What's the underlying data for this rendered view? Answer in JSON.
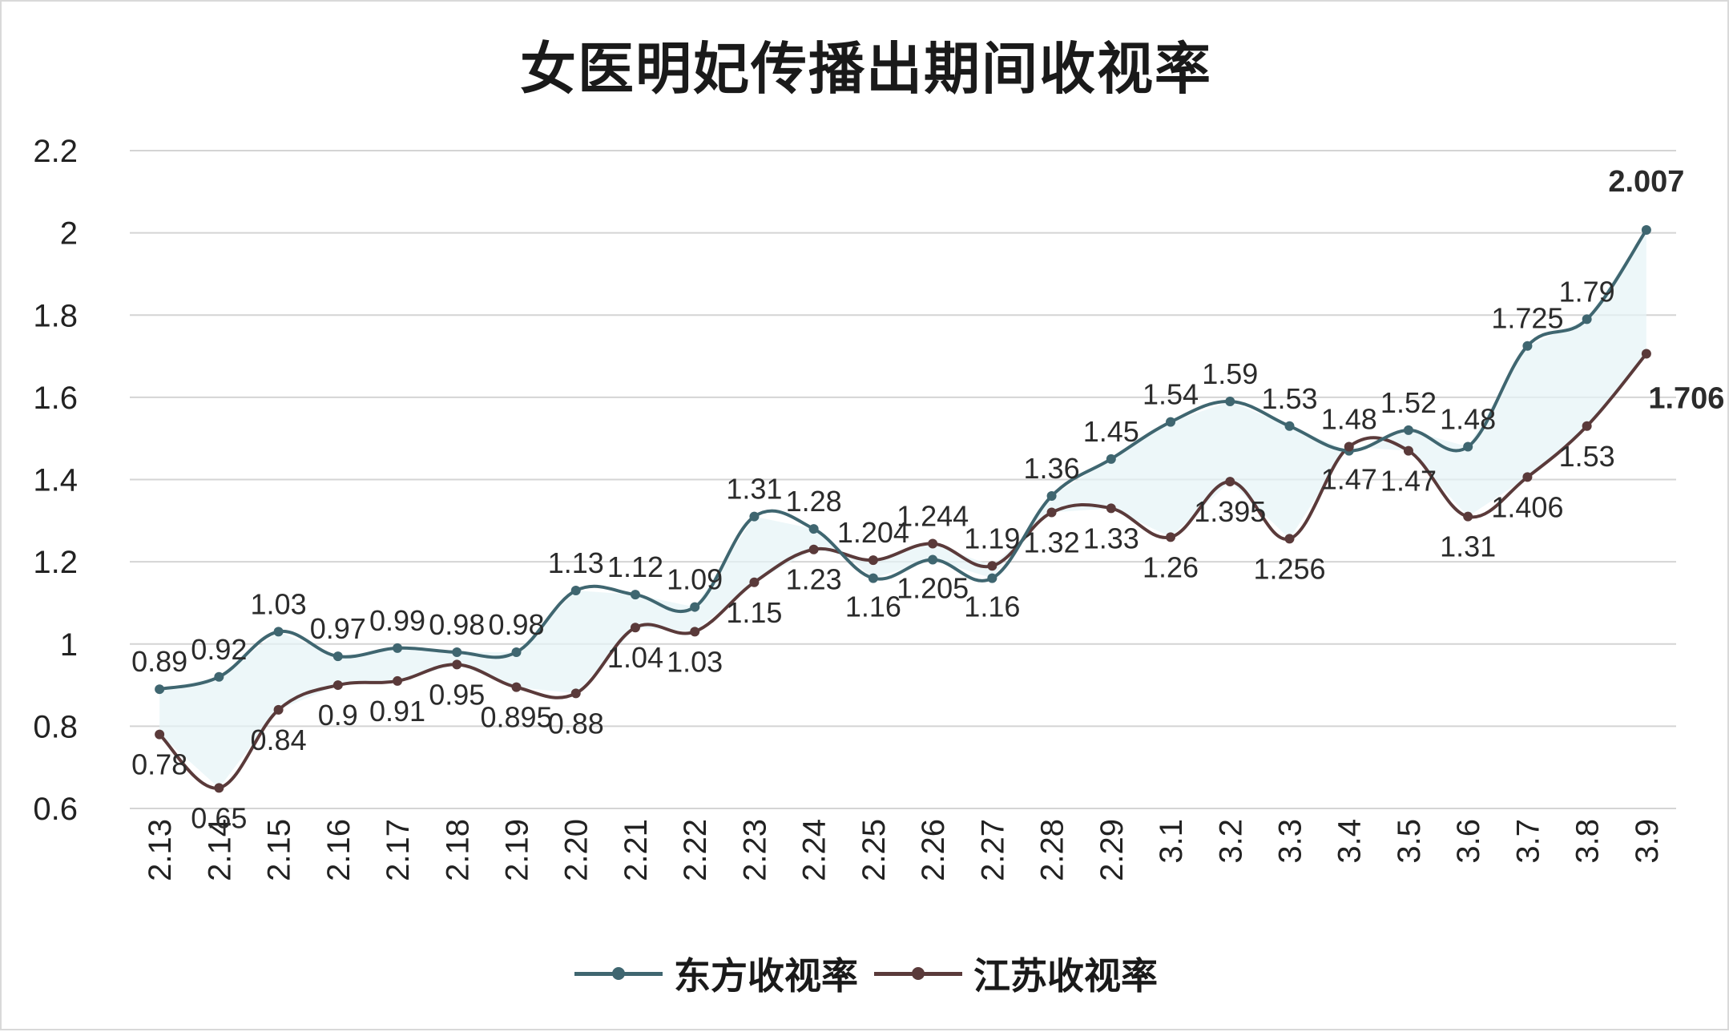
{
  "chart_data": {
    "type": "line",
    "title": "女医明妃传播出期间收视率",
    "xlabel": "",
    "ylabel": "",
    "ylim": [
      0.6,
      2.2
    ],
    "yticks": [
      "0.6",
      "0.8",
      "1",
      "1.2",
      "1.4",
      "1.6",
      "1.8",
      "2",
      "2.2"
    ],
    "grid": true,
    "legend_position": "bottom",
    "categories": [
      "2.13",
      "2.14",
      "2.15",
      "2.16",
      "2.17",
      "2.18",
      "2.19",
      "2.20",
      "2.21",
      "2.22",
      "2.23",
      "2.24",
      "2.25",
      "2.26",
      "2.27",
      "2.28",
      "2.29",
      "3.1",
      "3.2",
      "3.3",
      "3.4",
      "3.5",
      "3.6",
      "3.7",
      "3.8",
      "3.9"
    ],
    "series": [
      {
        "name": "东方收视率",
        "color": "#3f6670",
        "values": [
          0.89,
          0.92,
          1.03,
          0.97,
          0.99,
          0.98,
          0.98,
          1.13,
          1.12,
          1.09,
          1.31,
          1.28,
          1.16,
          1.205,
          1.16,
          1.36,
          1.45,
          1.54,
          1.59,
          1.53,
          1.47,
          1.52,
          1.48,
          1.725,
          1.79,
          2.007
        ],
        "labels": [
          "0.89",
          "0.92",
          "1.03",
          "0.97",
          "0.99",
          "0.98",
          "0.98",
          "1.13",
          "1.12",
          "1.09",
          "1.31",
          "1.28",
          "1.16",
          "1.205",
          "1.16",
          "1.36",
          "1.45",
          "1.54",
          "1.59",
          "1.53",
          "1.47",
          "1.52",
          "1.48",
          "1.725",
          "1.79",
          "2.007"
        ]
      },
      {
        "name": "江苏收视率",
        "color": "#5a3a3a",
        "values": [
          0.78,
          0.65,
          0.84,
          0.9,
          0.91,
          0.95,
          0.895,
          0.88,
          1.04,
          1.03,
          1.15,
          1.23,
          1.204,
          1.244,
          1.19,
          1.32,
          1.33,
          1.26,
          1.395,
          1.256,
          1.48,
          1.47,
          1.31,
          1.406,
          1.53,
          1.706
        ],
        "labels": [
          "0.78",
          "0.65",
          "0.84",
          "0.9",
          "0.91",
          "0.95",
          "0.895",
          "0.88",
          "1.04",
          "1.03",
          "1.15",
          "1.23",
          "1.204",
          "1.244",
          "1.19",
          "1.32",
          "1.33",
          "1.26",
          "1.395",
          "1.256",
          "1.48",
          "1.47",
          "1.31",
          "1.406",
          "1.53",
          "1.706"
        ]
      }
    ]
  }
}
